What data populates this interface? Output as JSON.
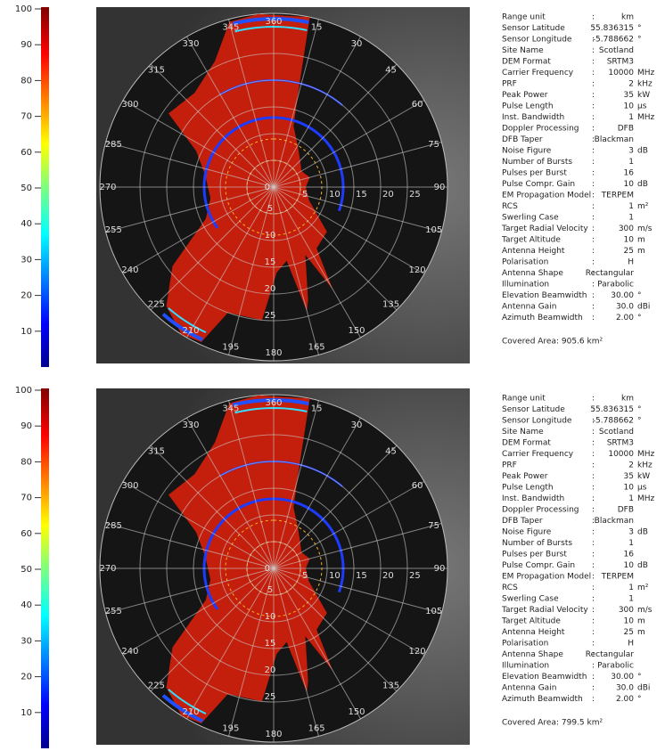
{
  "panels": [
    {
      "colorbar": {
        "lim": [
          0,
          100
        ],
        "ticks": [
          10,
          20,
          30,
          40,
          50,
          60,
          70,
          80,
          90,
          100
        ]
      },
      "polar": {
        "rlim": [
          0,
          32.5
        ],
        "angle_labels": [
          360,
          15,
          30,
          45,
          60,
          75,
          90,
          105,
          120,
          135,
          150,
          165,
          180,
          195,
          210,
          225,
          240,
          255,
          270,
          285,
          300,
          315,
          330,
          345
        ],
        "range_labels": [
          0,
          5,
          10,
          15,
          20,
          25
        ]
      },
      "parameters": {
        "separator": ":",
        "rows": [
          {
            "label": "Range unit",
            "value": "km"
          },
          {
            "label": "Sensor Latitude",
            "value": "55.836315",
            "unit": "°"
          },
          {
            "label": "Sensor Longitude",
            "value": "-5.788662",
            "unit": "°"
          },
          {
            "label": "Site Name",
            "value": "Scotland"
          },
          {
            "label": "DEM Format",
            "value": "SRTM3"
          },
          {
            "label": "Carrier Frequency",
            "value": "10000",
            "unit": "MHz"
          },
          {
            "label": "PRF",
            "value": "2",
            "unit": "kHz"
          },
          {
            "label": "Peak Power",
            "value": "35",
            "unit": "kW"
          },
          {
            "label": "Pulse Length",
            "value": "10",
            "unit": "µs"
          },
          {
            "label": "Inst. Bandwidth",
            "value": "1",
            "unit": "MHz"
          },
          {
            "label": "Doppler Processing",
            "value": "DFB"
          },
          {
            "label": "DFB Taper",
            "value": "Blackman"
          },
          {
            "label": "Noise Figure",
            "value": "3",
            "unit": "dB"
          },
          {
            "label": "Number of Bursts",
            "value": "1"
          },
          {
            "label": "Pulses per Burst",
            "value": "16"
          },
          {
            "label": "Pulse Compr. Gain",
            "value": "10",
            "unit": "dB"
          },
          {
            "label": "EM Propagation Model",
            "value": "TERPEM"
          },
          {
            "label": "RCS",
            "value": "1",
            "unit": "m²"
          },
          {
            "label": "Swerling Case",
            "value": "1"
          },
          {
            "label": "Target Radial Velocity",
            "value": "300",
            "unit": "m/s"
          },
          {
            "label": "Target Altitude",
            "value": "10",
            "unit": "m"
          },
          {
            "label": "Antenna Height",
            "value": "25",
            "unit": "m"
          },
          {
            "label": "Polarisation",
            "value": "H"
          },
          {
            "label": "Antenna Shape",
            "value": "Rectangular"
          },
          {
            "label": "Illumination",
            "value": "Parabolic"
          },
          {
            "label": "Elevation Beamwidth",
            "value": "30.00",
            "unit": "°"
          },
          {
            "label": "Antenna Gain",
            "value": "30.0",
            "unit": "dBi"
          },
          {
            "label": "Azimuth Beamwidth",
            "value": "2.00",
            "unit": "°"
          }
        ]
      },
      "covered_area": "Covered Area: 905.6 km²"
    },
    {
      "colorbar": {
        "lim": [
          0,
          100
        ],
        "ticks": [
          10,
          20,
          30,
          40,
          50,
          60,
          70,
          80,
          90,
          100
        ]
      },
      "polar": {
        "rlim": [
          0,
          32.5
        ],
        "angle_labels": [
          360,
          15,
          30,
          45,
          60,
          75,
          90,
          105,
          120,
          135,
          150,
          165,
          180,
          195,
          210,
          225,
          240,
          255,
          270,
          285,
          300,
          315,
          330,
          345
        ],
        "range_labels": [
          0,
          5,
          10,
          15,
          20,
          25
        ]
      },
      "parameters": {
        "separator": ":",
        "rows": [
          {
            "label": "Range unit",
            "value": "km"
          },
          {
            "label": "Sensor Latitude",
            "value": "55.836315",
            "unit": "°"
          },
          {
            "label": "Sensor Longitude",
            "value": "-5.788662",
            "unit": "°"
          },
          {
            "label": "Site Name",
            "value": "Scotland"
          },
          {
            "label": "DEM Format",
            "value": "SRTM3"
          },
          {
            "label": "Carrier Frequency",
            "value": "10000",
            "unit": "MHz"
          },
          {
            "label": "PRF",
            "value": "2",
            "unit": "kHz"
          },
          {
            "label": "Peak Power",
            "value": "35",
            "unit": "kW"
          },
          {
            "label": "Pulse Length",
            "value": "10",
            "unit": "µs"
          },
          {
            "label": "Inst. Bandwidth",
            "value": "1",
            "unit": "MHz"
          },
          {
            "label": "Doppler Processing",
            "value": "DFB"
          },
          {
            "label": "DFB Taper",
            "value": "Blackman"
          },
          {
            "label": "Noise Figure",
            "value": "3",
            "unit": "dB"
          },
          {
            "label": "Number of Bursts",
            "value": "1"
          },
          {
            "label": "Pulses per Burst",
            "value": "16"
          },
          {
            "label": "Pulse Compr. Gain",
            "value": "10",
            "unit": "dB"
          },
          {
            "label": "EM Propagation Model",
            "value": "TERPEM"
          },
          {
            "label": "RCS",
            "value": "1",
            "unit": "m²"
          },
          {
            "label": "Swerling Case",
            "value": "1"
          },
          {
            "label": "Target Radial Velocity",
            "value": "300",
            "unit": "m/s"
          },
          {
            "label": "Target Altitude",
            "value": "10",
            "unit": "m"
          },
          {
            "label": "Antenna Height",
            "value": "25",
            "unit": "m"
          },
          {
            "label": "Polarisation",
            "value": "H"
          },
          {
            "label": "Antenna Shape",
            "value": "Rectangular"
          },
          {
            "label": "Illumination",
            "value": "Parabolic"
          },
          {
            "label": "Elevation Beamwidth",
            "value": "30.00",
            "unit": "°"
          },
          {
            "label": "Antenna Gain",
            "value": "30.0",
            "unit": "dBi"
          },
          {
            "label": "Azimuth Beamwidth",
            "value": "2.00",
            "unit": "°"
          }
        ]
      },
      "covered_area": "Covered Area: 799.5 km²"
    }
  ]
}
